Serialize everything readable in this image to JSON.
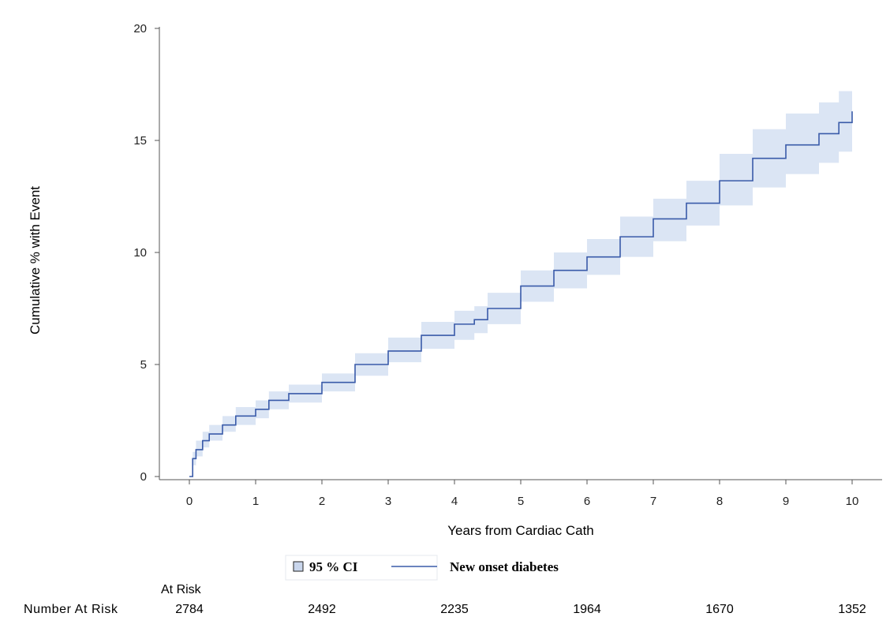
{
  "chart_data": {
    "type": "line",
    "xlabel": "Years from Cardiac Cath",
    "ylabel": "Cumulative % with Event",
    "xlim": [
      0,
      10
    ],
    "ylim": [
      0,
      20
    ],
    "x_ticks": [
      "0",
      "1",
      "2",
      "3",
      "4",
      "5",
      "6",
      "7",
      "8",
      "9",
      "10"
    ],
    "y_ticks": [
      "0",
      "5",
      "10",
      "15",
      "20"
    ],
    "grid": false,
    "legend_position": "bottom",
    "series": [
      {
        "name": "New onset diabetes",
        "color": "#3a5ba9",
        "x": [
          0,
          0.05,
          0.1,
          0.2,
          0.3,
          0.5,
          0.7,
          1.0,
          1.2,
          1.5,
          2.0,
          2.5,
          3.0,
          3.5,
          4.0,
          4.3,
          4.5,
          5.0,
          5.5,
          6.0,
          6.5,
          7.0,
          7.5,
          8.0,
          8.5,
          9.0,
          9.5,
          9.8,
          10.0
        ],
        "y": [
          0,
          0.8,
          1.2,
          1.6,
          1.9,
          2.3,
          2.7,
          3.0,
          3.4,
          3.7,
          4.2,
          5.0,
          5.6,
          6.3,
          6.8,
          7.0,
          7.5,
          8.5,
          9.2,
          9.8,
          10.7,
          11.5,
          12.2,
          13.2,
          14.2,
          14.8,
          15.3,
          15.8,
          16.3
        ]
      }
    ],
    "ci": {
      "name": "95 % CI",
      "color": "#dbe5f4",
      "lower": [
        0,
        0.5,
        0.9,
        1.3,
        1.6,
        2.0,
        2.3,
        2.6,
        3.0,
        3.3,
        3.8,
        4.5,
        5.1,
        5.7,
        6.1,
        6.4,
        6.8,
        7.8,
        8.4,
        9.0,
        9.8,
        10.5,
        11.2,
        12.1,
        12.9,
        13.5,
        14.0,
        14.5,
        14.8
      ],
      "upper": [
        0,
        1.1,
        1.6,
        2.0,
        2.3,
        2.7,
        3.1,
        3.4,
        3.8,
        4.1,
        4.6,
        5.5,
        6.2,
        6.9,
        7.4,
        7.6,
        8.2,
        9.2,
        10.0,
        10.6,
        11.6,
        12.4,
        13.2,
        14.4,
        15.5,
        16.2,
        16.7,
        17.2,
        17.8
      ]
    },
    "legend": [
      {
        "label": "95 % CI",
        "kind": "band"
      },
      {
        "label": "New onset diabetes",
        "kind": "line"
      }
    ],
    "risk_table": {
      "header": "At Risk",
      "row_label": "Number At Risk",
      "x": [
        0,
        2,
        4,
        6,
        8,
        10
      ],
      "values": [
        "2784",
        "2492",
        "2235",
        "1964",
        "1670",
        "1352"
      ]
    }
  }
}
